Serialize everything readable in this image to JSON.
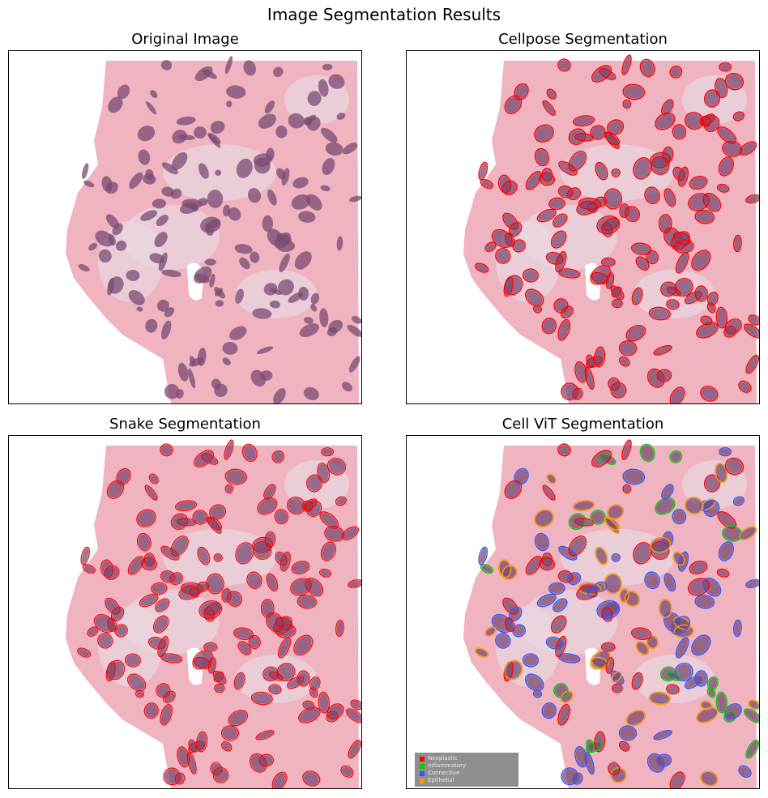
{
  "figure": {
    "title": "Image Segmentation Results"
  },
  "panels": {
    "original": {
      "title": "Original Image"
    },
    "cellpose": {
      "title": "Cellpose Segmentation",
      "contour_color": "#ff0000"
    },
    "snake": {
      "title": "Snake Segmentation",
      "contour_color": "#ff0000"
    },
    "cellvit": {
      "title": "Cell ViT Segmentation",
      "legend": [
        {
          "label": "Neoplastic",
          "color": "#ff0000"
        },
        {
          "label": "Inflammatory",
          "color": "#00cc00"
        },
        {
          "label": "Connective",
          "color": "#3355ff"
        },
        {
          "label": "Epithelial",
          "color": "#ff9900"
        }
      ]
    }
  },
  "colors": {
    "tissue_pink": "#f0b4c0",
    "tissue_light": "#ead6e0",
    "nucleus": "#7a4a72",
    "background": "#ffffff"
  }
}
